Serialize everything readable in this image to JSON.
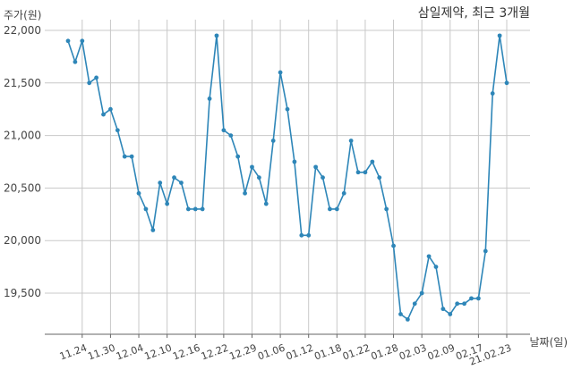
{
  "chart_data": {
    "type": "line",
    "title": "삼일제약, 최근 3개월",
    "ylabel": "주가(원)",
    "xlabel": "날짜(일)",
    "ylim": [
      19100,
      22050
    ],
    "yticks": [
      19500,
      20000,
      20500,
      21000,
      21500,
      22000
    ],
    "ytick_labels": [
      "19,500",
      "20,000",
      "20,500",
      "21,000",
      "21,500",
      "22,000"
    ],
    "xtick_labels": [
      "11.24",
      "11.30",
      "12.04",
      "12.10",
      "12.16",
      "12.22",
      "12.29",
      "01.06",
      "01.12",
      "01.18",
      "01.22",
      "01.28",
      "02.03",
      "02.09",
      "02.17",
      "21.02.23"
    ],
    "xtick_index": [
      2,
      6,
      10,
      14,
      18,
      22,
      26,
      30,
      34,
      38,
      42,
      46,
      50,
      54,
      58,
      62
    ],
    "grid": true,
    "color": "#2e86b8",
    "series": [
      {
        "values": [
          21900,
          21700,
          21900,
          21500,
          21550,
          21200,
          21250,
          21050,
          20800,
          20800,
          20450,
          20300,
          20100,
          20550,
          20350,
          20600,
          20550,
          20300,
          20300,
          20300,
          21350,
          21950,
          21050,
          21000,
          20800,
          20450,
          20700,
          20600,
          20350,
          20950,
          21600,
          21250,
          20750,
          20050,
          20050,
          20700,
          20600,
          20300,
          20300,
          20450,
          20950,
          20650,
          20650,
          20750,
          20600,
          20300,
          19950,
          19300,
          19250,
          19400,
          19500,
          19850,
          19750,
          19350,
          19300,
          19400,
          19400,
          19450,
          19450,
          19900,
          21400,
          21950,
          21500
        ]
      }
    ]
  }
}
